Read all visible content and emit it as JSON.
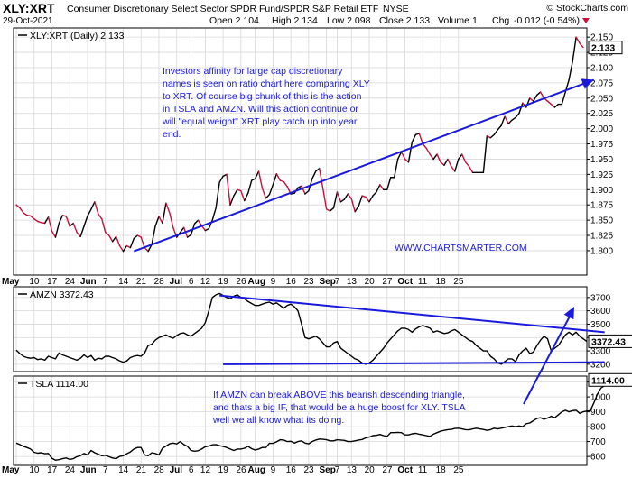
{
  "header": {
    "symbol": "XLY:XRT",
    "description": "Consumer Discretionary Select Sector SPDR Fund/SPDR S&P Retail ETF",
    "exchange": "NYSE",
    "copyright": "© StockCharts.com",
    "date": "29-Oct-2021",
    "open": "Open 2.104",
    "high": "High 2.134",
    "low": "Low 2.098",
    "close": "Close 2.133",
    "volume": "Volume 1",
    "chg_label": "Chg",
    "chg_value": "-0.012 (-0.54%)"
  },
  "colors": {
    "up": "#000000",
    "down": "#c8103a",
    "trend": "#1a1adc",
    "note": "#1a1adc",
    "grid": "#d8d8d8",
    "frame": "#000000"
  },
  "x_axis_labels": [
    "May",
    "10",
    "17",
    "24",
    "Jun",
    "7",
    "14",
    "21",
    "28",
    "Jul",
    "6",
    "12",
    "19",
    "26",
    "Aug",
    "9",
    "16",
    "23",
    "Sep",
    "7",
    "13",
    "20",
    "27",
    "Oct",
    "11",
    "18",
    "25"
  ],
  "chart_data": [
    {
      "type": "line",
      "panel": "main",
      "legend": "XLY:XRT (Daily) 2.133",
      "last_value": "2.133",
      "ylim": [
        1.76,
        2.165
      ],
      "yticks": [
        1.8,
        1.825,
        1.85,
        1.875,
        1.9,
        1.925,
        1.95,
        1.975,
        2.0,
        2.025,
        2.05,
        2.075,
        2.1,
        2.125,
        2.15
      ],
      "ytick_labels": [
        "1.800",
        "1.825",
        "1.850",
        "1.875",
        "1.900",
        "1.925",
        "1.950",
        "1.975",
        "2.000",
        "2.025",
        "2.050",
        "2.075",
        "2.100",
        "2.125",
        "2.150"
      ],
      "values": [
        1.875,
        1.87,
        1.862,
        1.858,
        1.857,
        1.852,
        1.848,
        1.846,
        1.845,
        1.855,
        1.832,
        1.822,
        1.845,
        1.858,
        1.856,
        1.84,
        1.845,
        1.83,
        1.823,
        1.84,
        1.857,
        1.868,
        1.88,
        1.86,
        1.852,
        1.83,
        1.825,
        1.815,
        1.823,
        1.808,
        1.799,
        1.808,
        1.805,
        1.82,
        1.825,
        1.822,
        1.805,
        1.799,
        1.81,
        1.84,
        1.856,
        1.845,
        1.878,
        1.862,
        1.838,
        1.822,
        1.83,
        1.838,
        1.822,
        1.826,
        1.844,
        1.85,
        1.841,
        1.833,
        1.836,
        1.85,
        1.87,
        1.912,
        1.922,
        1.925,
        1.875,
        1.89,
        1.9,
        1.898,
        1.882,
        1.894,
        1.915,
        1.918,
        1.93,
        1.902,
        1.886,
        1.892,
        1.908,
        1.926,
        1.915,
        1.913,
        1.905,
        1.893,
        1.894,
        1.903,
        1.906,
        1.893,
        1.898,
        1.918,
        1.93,
        1.935,
        1.902,
        1.868,
        1.865,
        1.87,
        1.896,
        1.88,
        1.884,
        1.893,
        1.885,
        1.864,
        1.873,
        1.89,
        1.888,
        1.88,
        1.89,
        1.896,
        1.908,
        1.9,
        1.9,
        1.92,
        1.92,
        1.95,
        1.962,
        1.95,
        1.945,
        1.978,
        1.99,
        1.992,
        1.975,
        1.968,
        1.958,
        1.95,
        1.958,
        1.945,
        1.94,
        1.95,
        1.938,
        1.93,
        1.95,
        1.958,
        1.945,
        1.938,
        1.928,
        1.928,
        1.928,
        1.928,
        1.988,
        1.985,
        1.99,
        1.998,
        2.005,
        2.02,
        2.008,
        2.014,
        2.018,
        2.025,
        2.042,
        2.035,
        2.05,
        2.045,
        2.055,
        2.06,
        2.05,
        2.045,
        2.04,
        2.035,
        2.04,
        2.04,
        2.06,
        2.08,
        2.11,
        2.15,
        2.14,
        2.133
      ],
      "annotation_main": "Investors affinity for large cap discretionary names is seen on ratio chart here comparing XLY to XRT. Of course big chunk of this is the action in TSLA and AMZN. Will this action continue or will \"equal weight\" XRT play catch up into year end.",
      "watermark": "WWW.CHARTSMARTER.COM",
      "trendline": {
        "from": [
          33,
          1.799
        ],
        "to": [
          162,
          2.08
        ]
      }
    },
    {
      "type": "line",
      "panel": "amzn",
      "legend": "AMZN 3372.43",
      "last_value": "3372.43",
      "ylim": [
        3145,
        3780
      ],
      "yticks": [
        3200,
        3300,
        3400,
        3500,
        3600,
        3700
      ],
      "ytick_labels": [
        "3200",
        "3300",
        "3400",
        "3500",
        "3600",
        "3700"
      ],
      "values": [
        3305,
        3280,
        3260,
        3250,
        3245,
        3250,
        3235,
        3240,
        3230,
        3260,
        3250,
        3240,
        3285,
        3270,
        3260,
        3250,
        3240,
        3230,
        3245,
        3270,
        3250,
        3265,
        3230,
        3245,
        3240,
        3260,
        3260,
        3250,
        3240,
        3225,
        3215,
        3225,
        3250,
        3260,
        3265,
        3260,
        3285,
        3340,
        3350,
        3380,
        3400,
        3410,
        3420,
        3405,
        3395,
        3415,
        3430,
        3435,
        3420,
        3410,
        3430,
        3450,
        3470,
        3510,
        3600,
        3700,
        3720,
        3730,
        3715,
        3700,
        3690,
        3710,
        3720,
        3700,
        3690,
        3670,
        3655,
        3640,
        3640,
        3650,
        3660,
        3665,
        3650,
        3660,
        3640,
        3620,
        3640,
        3650,
        3630,
        3600,
        3500,
        3400,
        3390,
        3400,
        3410,
        3390,
        3360,
        3330,
        3330,
        3360,
        3370,
        3320,
        3300,
        3280,
        3260,
        3240,
        3230,
        3210,
        3200,
        3210,
        3230,
        3260,
        3290,
        3320,
        3360,
        3390,
        3420,
        3450,
        3470,
        3470,
        3460,
        3440,
        3465,
        3480,
        3490,
        3480,
        3470,
        3440,
        3450,
        3440,
        3430,
        3435,
        3450,
        3460,
        3440,
        3420,
        3400,
        3380,
        3370,
        3340,
        3320,
        3300,
        3300,
        3260,
        3240,
        3210,
        3200,
        3220,
        3240,
        3240,
        3220,
        3270,
        3300,
        3320,
        3280,
        3290,
        3340,
        3380,
        3410,
        3390,
        3300,
        3320,
        3340,
        3380,
        3420,
        3440,
        3420,
        3440,
        3410,
        3390,
        3372
      ],
      "trendlines": [
        {
          "from": [
            57,
            3715
          ],
          "to": [
            165,
            3440
          ]
        },
        {
          "from": [
            58,
            3200
          ],
          "to": [
            165,
            3215
          ]
        }
      ]
    },
    {
      "type": "line",
      "panel": "tsla",
      "legend": "TSLA 1114.00",
      "last_value": "1114.00",
      "ylim": [
        540,
        1140
      ],
      "yticks": [
        600,
        700,
        800,
        900,
        1000,
        1100
      ],
      "ytick_labels": [
        "600",
        "700",
        "800",
        "900",
        "1000",
        "1100"
      ],
      "values": [
        690,
        680,
        668,
        660,
        650,
        628,
        622,
        625,
        618,
        620,
        588,
        575,
        578,
        585,
        590,
        580,
        585,
        598,
        605,
        620,
        610,
        640,
        625,
        615,
        605,
        608,
        598,
        590,
        585,
        600,
        605,
        618,
        630,
        650,
        660,
        660,
        610,
        605,
        625,
        620,
        610,
        655,
        670,
        685,
        690,
        684,
        700,
        680,
        668,
        640,
        635,
        638,
        650,
        665,
        670,
        678,
        680,
        672,
        668,
        660,
        650,
        640,
        650,
        650,
        655,
        668,
        652,
        643,
        650,
        660,
        660,
        688,
        688,
        698,
        712,
        710,
        700,
        702,
        690,
        700,
        705,
        690,
        685,
        700,
        710,
        717,
        715,
        712,
        705,
        705,
        712,
        710,
        708,
        700,
        700,
        705,
        710,
        714,
        725,
        730,
        740,
        742,
        748,
        740,
        735,
        760,
        760,
        762,
        760,
        745,
        745,
        752,
        755,
        750,
        745,
        740,
        735,
        750,
        760,
        770,
        775,
        780,
        782,
        788,
        790,
        785,
        780,
        779,
        785,
        790,
        785,
        781,
        775,
        780,
        790,
        785,
        790,
        795,
        800,
        805,
        800,
        805,
        800,
        820,
        825,
        840,
        855,
        860,
        850,
        858,
        870,
        860,
        880,
        900,
        910,
        900,
        908,
        910,
        890,
        900,
        905,
        908,
        960,
        1020,
        1060,
        1075,
        1100,
        1114
      ],
      "annotation": "If AMZN can break ABOVE this bearish descending triangle, and thats a big IF, that would be a huge boost for XLY. TSLA well we all know what its doing."
    }
  ]
}
